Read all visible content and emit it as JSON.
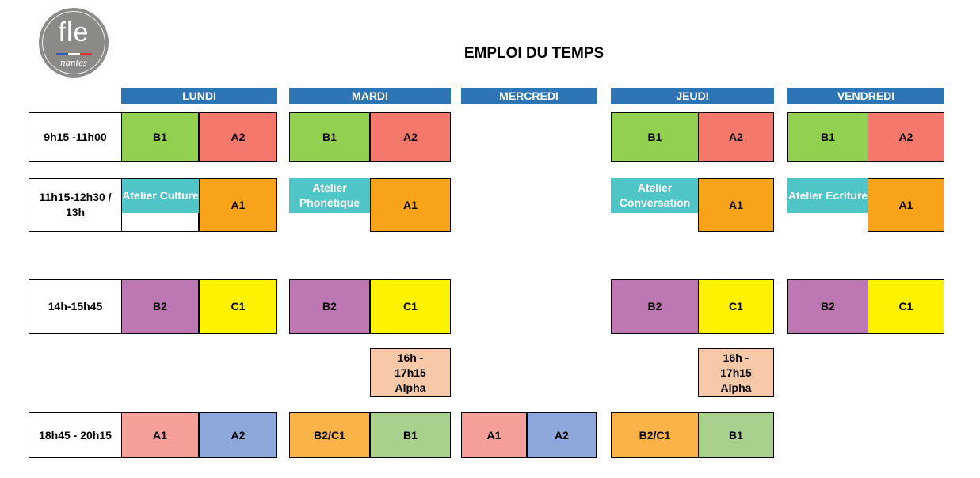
{
  "logo": {
    "top_text": "fle",
    "bottom_text": "nantes"
  },
  "title": "EMPLOI DU TEMPS",
  "days": [
    "LUNDI",
    "MARDI",
    "MERCREDI",
    "JEUDI",
    "VENDREDI"
  ],
  "times": [
    "9h15 -11h00",
    "11h15-12h30 / 13h",
    "14h-15h45",
    "18h45 - 20h15"
  ],
  "slots": {
    "lundi_r1_a": "B1",
    "lundi_r1_b": "A2",
    "mardi_r1_a": "B1",
    "mardi_r1_b": "A2",
    "jeudi_r1_a": "B1",
    "jeudi_r1_b": "A2",
    "vendredi_r1_a": "B1",
    "vendredi_r1_b": "A2",
    "lundi_r2_atelier": "Atelier Culture",
    "lundi_r2_b": "A1",
    "mardi_r2_atelier": "Atelier Phonétique",
    "mardi_r2_b": "A1",
    "jeudi_r2_atelier": "Atelier Conversation",
    "jeudi_r2_b": "A1",
    "vendredi_r2_atelier": "Atelier Ecriture",
    "vendredi_r2_b": "A1",
    "lundi_r3_a": "B2",
    "lundi_r3_b": "C1",
    "mardi_r3_a": "B2",
    "mardi_r3_b": "C1",
    "jeudi_r3_a": "B2",
    "jeudi_r3_b": "C1",
    "vendredi_r3_a": "B2",
    "vendredi_r3_b": "C1",
    "mardi_alpha": "16h - 17h15 Alpha",
    "jeudi_alpha": "16h - 17h15 Alpha",
    "lundi_r4_a": "A1",
    "lundi_r4_b": "A2",
    "mardi_r4_a": "B2/C1",
    "mardi_r4_b": "B1",
    "mercredi_r4_a": "A1",
    "mercredi_r4_b": "A2",
    "jeudi_r4_a": "B2/C1",
    "jeudi_r4_b": "B1"
  },
  "colors": {
    "header": "#2e75b6",
    "b1": "#92d050",
    "a2": "#f4786c",
    "atelier": "#4fc5c8",
    "a1": "#f9a31b",
    "b2": "#bd77b3",
    "c1": "#fff200",
    "alpha": "#f8c9a9",
    "evening_a1": "#f4a098",
    "evening_a2": "#8fa8dc",
    "evening_b2c1": "#f9b348",
    "evening_b1": "#a9d18e"
  }
}
